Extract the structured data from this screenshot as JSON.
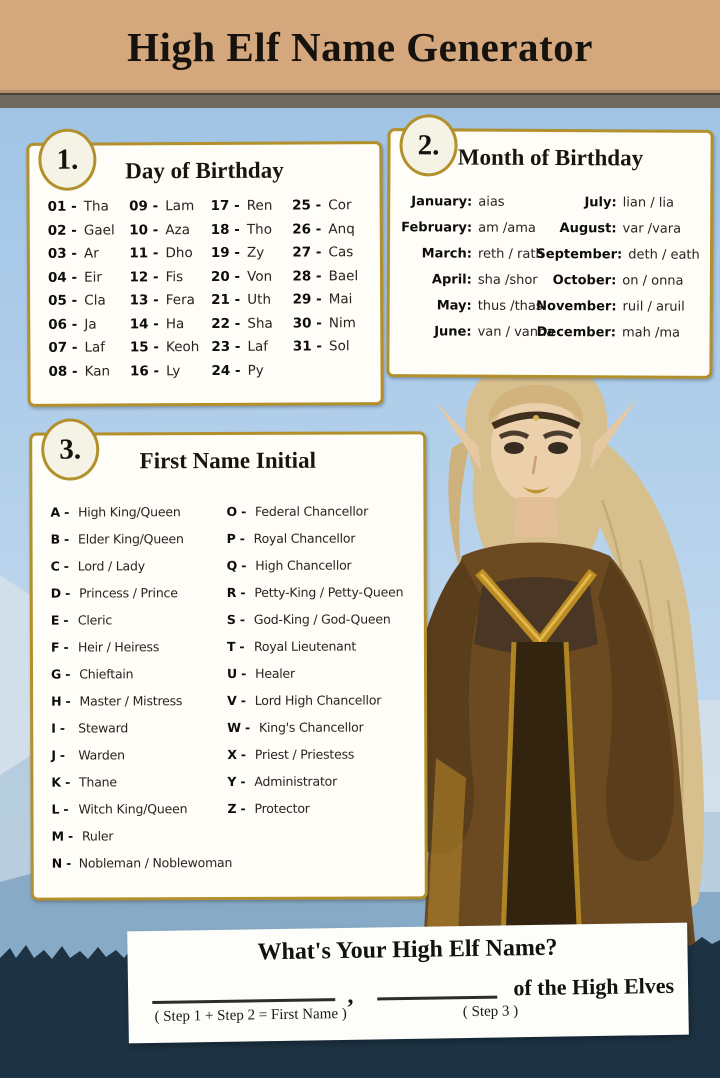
{
  "header": {
    "title": "High Elf Name Generator"
  },
  "colors": {
    "header_bg": "#d5a77c",
    "divider_gray": "#6f6a60",
    "box_border_gold": "#b2902c",
    "sky_blue": "#aecdea",
    "bottom_navy": "#1d3242"
  },
  "step1": {
    "number": "1.",
    "title": "Day of Birthday",
    "entries": [
      {
        "num": "01",
        "value": "Tha"
      },
      {
        "num": "02",
        "value": "Gael"
      },
      {
        "num": "03",
        "value": "Ar"
      },
      {
        "num": "04",
        "value": "Eir"
      },
      {
        "num": "05",
        "value": "Cla"
      },
      {
        "num": "06",
        "value": "Ja"
      },
      {
        "num": "07",
        "value": "Laf"
      },
      {
        "num": "08",
        "value": "Kan"
      },
      {
        "num": "09",
        "value": "Lam"
      },
      {
        "num": "10",
        "value": "Aza"
      },
      {
        "num": "11",
        "value": "Dho"
      },
      {
        "num": "12",
        "value": "Fis"
      },
      {
        "num": "13",
        "value": "Fera"
      },
      {
        "num": "14",
        "value": "Ha"
      },
      {
        "num": "15",
        "value": "Keoh"
      },
      {
        "num": "16",
        "value": "Ly"
      },
      {
        "num": "17",
        "value": "Ren"
      },
      {
        "num": "18",
        "value": "Tho"
      },
      {
        "num": "19",
        "value": "Zy"
      },
      {
        "num": "20",
        "value": "Von"
      },
      {
        "num": "21",
        "value": "Uth"
      },
      {
        "num": "22",
        "value": "Sha"
      },
      {
        "num": "23",
        "value": "Laf"
      },
      {
        "num": "24",
        "value": "Py"
      },
      {
        "num": "25",
        "value": "Cor"
      },
      {
        "num": "26",
        "value": "Anq"
      },
      {
        "num": "27",
        "value": "Cas"
      },
      {
        "num": "28",
        "value": "Bael"
      },
      {
        "num": "29",
        "value": "Mai"
      },
      {
        "num": "30",
        "value": "Nim"
      },
      {
        "num": "31",
        "value": "Sol"
      }
    ]
  },
  "step2": {
    "number": "2.",
    "title": "Month of Birthday",
    "entries": [
      {
        "month": "January",
        "value": "aias"
      },
      {
        "month": "February",
        "value": "am /ama"
      },
      {
        "month": "March",
        "value": "reth / rath"
      },
      {
        "month": "April",
        "value": "sha /shor"
      },
      {
        "month": "May",
        "value": "thus /thas"
      },
      {
        "month": "June",
        "value": "van / vanna"
      },
      {
        "month": "July",
        "value": "lian / lia"
      },
      {
        "month": "August",
        "value": "var /vara"
      },
      {
        "month": "September",
        "value": "deth / eath"
      },
      {
        "month": "October",
        "value": "on / onna"
      },
      {
        "month": "November",
        "value": "ruil / aruil"
      },
      {
        "month": "December",
        "value": "mah /ma"
      }
    ]
  },
  "step3": {
    "number": "3.",
    "title": "First Name Initial",
    "entries": [
      {
        "letter": "A",
        "value": "High King/Queen"
      },
      {
        "letter": "B",
        "value": "Elder King/Queen"
      },
      {
        "letter": "C",
        "value": "Lord / Lady"
      },
      {
        "letter": "D",
        "value": "Princess / Prince"
      },
      {
        "letter": "E",
        "value": "Cleric"
      },
      {
        "letter": "F",
        "value": "Heir / Heiress"
      },
      {
        "letter": "G",
        "value": "Chieftain"
      },
      {
        "letter": "H",
        "value": "Master / Mistress"
      },
      {
        "letter": "I",
        "value": "Steward"
      },
      {
        "letter": "J",
        "value": "Warden"
      },
      {
        "letter": "K",
        "value": "Thane"
      },
      {
        "letter": "L",
        "value": "Witch King/Queen"
      },
      {
        "letter": "M",
        "value": "Ruler"
      },
      {
        "letter": "N",
        "value": "Nobleman / Noblewoman"
      },
      {
        "letter": "O",
        "value": "Federal Chancellor"
      },
      {
        "letter": "P",
        "value": "Royal Chancellor"
      },
      {
        "letter": "Q",
        "value": "High Chancellor"
      },
      {
        "letter": "R",
        "value": "Petty-King / Petty-Queen"
      },
      {
        "letter": "S",
        "value": "God-King / God-Queen"
      },
      {
        "letter": "T",
        "value": "Royal Lieutenant"
      },
      {
        "letter": "U",
        "value": "Healer"
      },
      {
        "letter": "V",
        "value": "Lord High Chancellor"
      },
      {
        "letter": "W",
        "value": "King's Chancellor"
      },
      {
        "letter": "X",
        "value": "Priest / Priestess"
      },
      {
        "letter": "Y",
        "value": "Administrator"
      },
      {
        "letter": "Z",
        "value": "Protector"
      }
    ]
  },
  "result": {
    "title": "What's Your High Elf Name?",
    "comma": ",",
    "suffix": "of the High Elves",
    "caption_first_name": "( Step 1 + Step 2 = First Name )",
    "caption_step3": "( Step 3 )"
  }
}
